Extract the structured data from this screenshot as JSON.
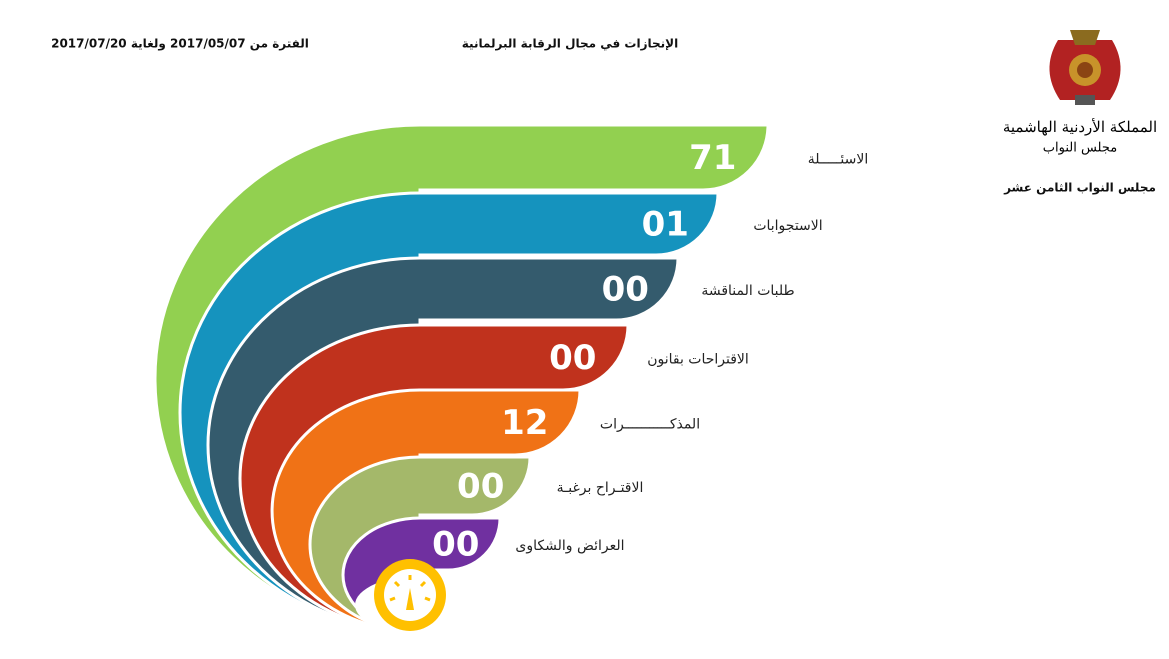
{
  "header": {
    "title": "الإنجازات في مجال الرقابة البرلمانية",
    "period": "الفترة من 2017/05/07 ولغاية 2017/07/20"
  },
  "logo": {
    "kingdom": "المملكة الأردنية الهاشمية",
    "council": "مجلس النواب",
    "caption": "مجلس النواب الثامن عشر"
  },
  "items": [
    {
      "label": "الاسئـــــلة",
      "value": "71",
      "color": "#92d050"
    },
    {
      "label": "الاستجوابات",
      "value": "01",
      "color": "#1593be"
    },
    {
      "label": "طلبات المناقشة",
      "value": "00",
      "color": "#345b6d"
    },
    {
      "label": "الاقتراحات بقانون",
      "value": "00",
      "color": "#c0321d"
    },
    {
      "label": "المذكـــــــــــرات",
      "value": "12",
      "color": "#f07216"
    },
    {
      "label": "الاقتـراح برغبـة",
      "value": "00",
      "color": "#a4b86a"
    },
    {
      "label": "العرائض والشكاوى",
      "value": "00",
      "color": "#7030a0"
    }
  ]
}
